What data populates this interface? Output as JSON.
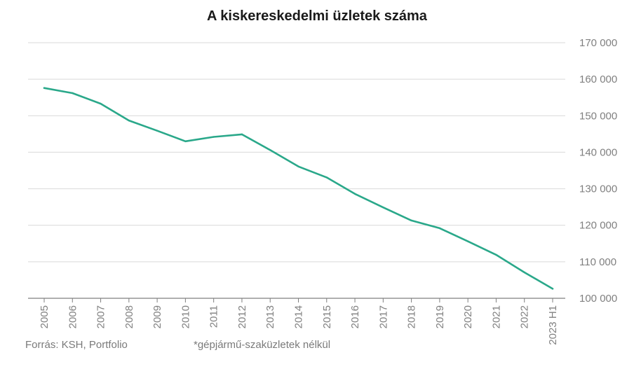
{
  "chart_data": {
    "type": "line",
    "title": "A kiskereskedelmi üzletek száma",
    "xlabel": "",
    "ylabel": "",
    "categories": [
      "2005",
      "2006",
      "2007",
      "2008",
      "2009",
      "2010",
      "2011",
      "2012",
      "2013",
      "2014",
      "2015",
      "2016",
      "2017",
      "2018",
      "2019",
      "2020",
      "2021",
      "2022",
      "2023 H1"
    ],
    "series": [
      {
        "name": "",
        "color": "#2aa88a",
        "values": [
          157600,
          156200,
          153300,
          148700,
          145900,
          143000,
          144200,
          144900,
          140600,
          136100,
          133100,
          128600,
          124900,
          121300,
          119200,
          115600,
          111900,
          107100,
          102600
        ]
      }
    ],
    "y_ticks": [
      100000,
      110000,
      120000,
      130000,
      140000,
      150000,
      160000,
      170000
    ],
    "y_tick_labels": [
      "100 000",
      "110 000",
      "120 000",
      "130 000",
      "140 000",
      "150 000",
      "160 000",
      "170 000"
    ],
    "ylim": [
      100000,
      170000
    ],
    "y_axis_side": "right",
    "grid": true,
    "legend": "none"
  },
  "footer": {
    "source": "Forrás: KSH, Portfolio",
    "note": "*gépjármű-szaküzletek nélkül"
  },
  "colors": {
    "line": "#2aa88a",
    "grid": "#d9d9d9",
    "axis": "#7f7f7f",
    "text": "#808080"
  }
}
